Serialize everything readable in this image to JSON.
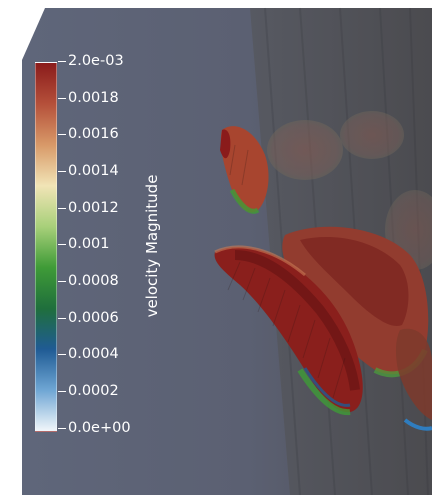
{
  "colorbar": {
    "title": "velocity Magnitude",
    "ticks": [
      "2.0e-03",
      "0.0018",
      "0.0016",
      "0.0014",
      "0.0012",
      "0.001",
      "0.0008",
      "0.0006",
      "0.0004",
      "0.0002",
      "0.0e+00"
    ],
    "range": [
      0,
      0.002
    ],
    "colormap": [
      "#f1f6fa",
      "#6fa6d4",
      "#1f5b94",
      "#1f6f3c",
      "#3f9b37",
      "#a8d07a",
      "#f1e4b6",
      "#d89968",
      "#b5503a",
      "#8a1b1b"
    ]
  },
  "scene": {
    "background_color": "#ffffff",
    "domain_color": "#5e6678"
  }
}
